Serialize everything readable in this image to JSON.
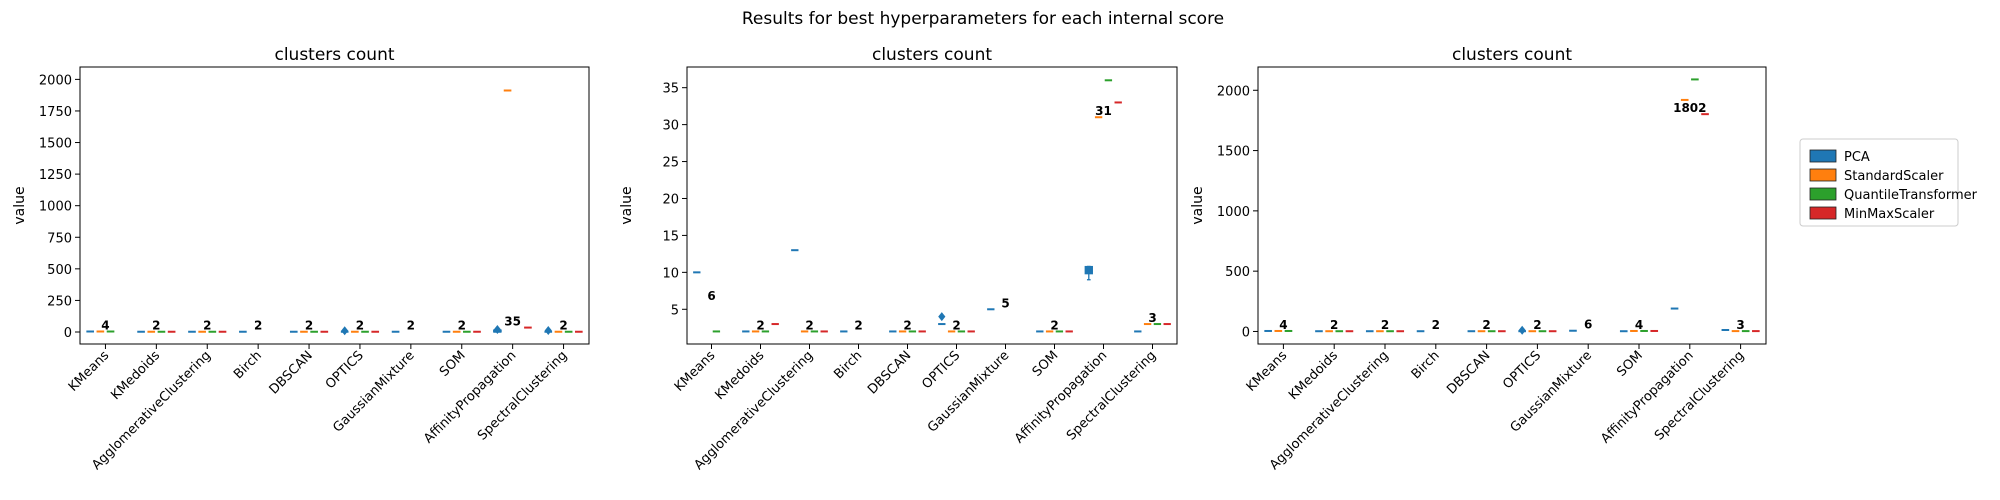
{
  "figure": {
    "suptitle": "Results for best hyperparameters for each internal score"
  },
  "legend": {
    "placement": "right",
    "entries": [
      {
        "name": "PCA",
        "color": "#1f77b4"
      },
      {
        "name": "StandardScaler",
        "color": "#ff7f0e"
      },
      {
        "name": "QuantileTransformer",
        "color": "#2ca02c"
      },
      {
        "name": "MinMaxScaler",
        "color": "#d62728"
      }
    ]
  },
  "chart_data": [
    {
      "type": "box",
      "title": "clusters count",
      "ylabel": "value",
      "ylim": [
        -95,
        2098
      ],
      "yticks": [
        0,
        250,
        500,
        750,
        1000,
        1250,
        1500,
        1750,
        2000
      ],
      "categories": [
        "KMeans",
        "KMedoids",
        "AgglomerativeClustering",
        "Birch",
        "DBSCAN",
        "OPTICS",
        "GaussianMixture",
        "SOM",
        "AffinityPropagation",
        "SpectralClustering"
      ],
      "series": [
        {
          "name": "PCA",
          "values": [
            4,
            2,
            2,
            2,
            2,
            2,
            2,
            2,
            2,
            2
          ]
        },
        {
          "name": "StandardScaler",
          "values": [
            4,
            2,
            2,
            null,
            2,
            2,
            null,
            2,
            1912,
            2
          ]
        },
        {
          "name": "QuantileTransformer",
          "values": [
            4,
            2,
            2,
            null,
            2,
            2,
            null,
            2,
            null,
            2
          ]
        },
        {
          "name": "MinMaxScaler",
          "values": [
            null,
            2,
            2,
            null,
            2,
            2,
            null,
            2,
            35,
            2
          ]
        }
      ],
      "boxes": [
        {
          "category": "AffinityPropagation",
          "series": "PCA",
          "low": 3,
          "q1": 8,
          "median": 12,
          "q3": 16,
          "high": 20
        }
      ],
      "outliers": [
        {
          "category": "OPTICS",
          "series": "PCA",
          "value": 10
        },
        {
          "category": "AffinityPropagation",
          "series": "PCA",
          "value": 20
        },
        {
          "category": "SpectralClustering",
          "series": "PCA",
          "value": 12
        }
      ],
      "annotations": [
        {
          "category": "KMeans",
          "value": 4,
          "text": "4"
        },
        {
          "category": "KMedoids",
          "value": 2,
          "text": "2"
        },
        {
          "category": "AgglomerativeClustering",
          "value": 2,
          "text": "2"
        },
        {
          "category": "Birch",
          "value": 2,
          "text": "2"
        },
        {
          "category": "DBSCAN",
          "value": 2,
          "text": "2"
        },
        {
          "category": "OPTICS",
          "value": 2,
          "text": "2"
        },
        {
          "category": "GaussianMixture",
          "value": 2,
          "text": "2"
        },
        {
          "category": "SOM",
          "value": 2,
          "text": "2"
        },
        {
          "category": "AffinityPropagation",
          "value": 35,
          "text": "35"
        },
        {
          "category": "SpectralClustering",
          "value": 2,
          "text": "2"
        }
      ]
    },
    {
      "type": "box",
      "title": "clusters count",
      "ylabel": "value",
      "ylim": [
        0.3,
        37.8
      ],
      "yticks": [
        5,
        10,
        15,
        20,
        25,
        30,
        35
      ],
      "categories": [
        "KMeans",
        "KMedoids",
        "AgglomerativeClustering",
        "Birch",
        "DBSCAN",
        "OPTICS",
        "GaussianMixture",
        "SOM",
        "AffinityPropagation",
        "SpectralClustering"
      ],
      "series": [
        {
          "name": "PCA",
          "values": [
            10,
            2,
            13,
            2,
            2,
            3,
            5,
            2,
            null,
            2
          ]
        },
        {
          "name": "StandardScaler",
          "values": [
            null,
            2,
            2,
            null,
            2,
            2,
            null,
            2,
            31,
            3
          ]
        },
        {
          "name": "QuantileTransformer",
          "values": [
            2,
            2,
            2,
            null,
            2,
            2,
            null,
            2,
            36,
            3
          ]
        },
        {
          "name": "MinMaxScaler",
          "values": [
            null,
            3,
            2,
            null,
            2,
            2,
            null,
            2,
            33,
            3
          ]
        }
      ],
      "boxes": [
        {
          "category": "AffinityPropagation",
          "series": "PCA",
          "low": 9,
          "q1": 9.8,
          "median": 10.2,
          "q3": 10.8,
          "high": 10.8
        }
      ],
      "outliers": [
        {
          "category": "OPTICS",
          "series": "PCA",
          "value": 4
        }
      ],
      "annotations": [
        {
          "category": "KMeans",
          "value": 6,
          "text": "6"
        },
        {
          "category": "KMedoids",
          "value": 2,
          "text": "2"
        },
        {
          "category": "AgglomerativeClustering",
          "value": 2,
          "text": "2"
        },
        {
          "category": "Birch",
          "value": 2,
          "text": "2"
        },
        {
          "category": "DBSCAN",
          "value": 2,
          "text": "2"
        },
        {
          "category": "OPTICS",
          "value": 2,
          "text": "2"
        },
        {
          "category": "GaussianMixture",
          "value": 5,
          "text": "5"
        },
        {
          "category": "SOM",
          "value": 2,
          "text": "2"
        },
        {
          "category": "AffinityPropagation",
          "value": 31,
          "text": "31"
        },
        {
          "category": "SpectralClustering",
          "value": 3,
          "text": "3"
        }
      ]
    },
    {
      "type": "box",
      "title": "clusters count",
      "ylabel": "value",
      "ylim": [
        -104,
        2193
      ],
      "yticks": [
        0,
        500,
        1000,
        1500,
        2000
      ],
      "categories": [
        "KMeans",
        "KMedoids",
        "AgglomerativeClustering",
        "Birch",
        "DBSCAN",
        "OPTICS",
        "GaussianMixture",
        "SOM",
        "AffinityPropagation",
        "SpectralClustering"
      ],
      "series": [
        {
          "name": "PCA",
          "values": [
            4,
            2,
            2,
            2,
            2,
            2,
            6,
            2,
            190,
            12
          ]
        },
        {
          "name": "StandardScaler",
          "values": [
            4,
            2,
            2,
            null,
            2,
            2,
            null,
            4,
            1920,
            3
          ]
        },
        {
          "name": "QuantileTransformer",
          "values": [
            4,
            2,
            2,
            null,
            2,
            2,
            null,
            4,
            2090,
            3
          ]
        },
        {
          "name": "MinMaxScaler",
          "values": [
            null,
            2,
            2,
            null,
            2,
            2,
            null,
            4,
            1802,
            3
          ]
        }
      ],
      "boxes": [],
      "outliers": [
        {
          "category": "OPTICS",
          "series": "PCA",
          "value": 10
        }
      ],
      "annotations": [
        {
          "category": "KMeans",
          "value": 4,
          "text": "4"
        },
        {
          "category": "KMedoids",
          "value": 2,
          "text": "2"
        },
        {
          "category": "AgglomerativeClustering",
          "value": 2,
          "text": "2"
        },
        {
          "category": "Birch",
          "value": 2,
          "text": "2"
        },
        {
          "category": "DBSCAN",
          "value": 2,
          "text": "2"
        },
        {
          "category": "OPTICS",
          "value": 2,
          "text": "2"
        },
        {
          "category": "GaussianMixture",
          "value": 6,
          "text": "6"
        },
        {
          "category": "SOM",
          "value": 4,
          "text": "4"
        },
        {
          "category": "AffinityPropagation",
          "value": 1802,
          "text": "1802"
        },
        {
          "category": "SpectralClustering",
          "value": 3,
          "text": "3"
        }
      ]
    }
  ]
}
